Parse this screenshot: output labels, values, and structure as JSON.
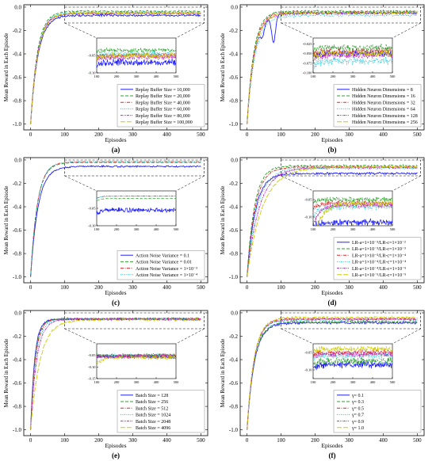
{
  "figure": {
    "ylabel": "Mean Reward in Each Episode",
    "xlabel": "Episodes"
  },
  "chart_data": [
    {
      "type": "line",
      "panel_label": "(a)",
      "xlabel": "Episodes",
      "ylabel": "Mean Reward in Each Episode",
      "xlim": [
        -20,
        520
      ],
      "ylim": [
        -1.05,
        0.02
      ],
      "xticks": [
        0,
        100,
        200,
        300,
        400,
        500
      ],
      "xtick_labels": [
        "0",
        "100",
        "200",
        "300",
        "400",
        "500"
      ],
      "yticks": [
        0.0,
        -0.2,
        -0.4,
        -0.6,
        -0.8,
        -1.0
      ],
      "ytick_labels": [
        "0.0",
        "-0.2",
        "-0.4",
        "-0.6",
        "-0.8",
        "-1.0"
      ],
      "legend_position": "lower-right",
      "series": [
        {
          "name": "Replay Buffer Size = 10,000",
          "color": "#1f1fff",
          "dash": "solid",
          "start": -1.0,
          "end": -0.07,
          "k": 22,
          "noise": 0.012
        },
        {
          "name": "Replay Buffer Size = 20,000",
          "color": "#2ca02c",
          "dash": "dash",
          "start": -1.0,
          "end": -0.035,
          "k": 20,
          "noise": 0.008
        },
        {
          "name": "Replay Buffer Size = 40,000",
          "color": "#d62728",
          "dash": "dashdot",
          "start": -1.0,
          "end": -0.05,
          "k": 21,
          "noise": 0.01
        },
        {
          "name": "Replay Buffer Size = 60,000",
          "color": "#17becf",
          "dash": "dot",
          "start": -1.0,
          "end": -0.045,
          "k": 21,
          "noise": 0.01
        },
        {
          "name": "Replay Buffer Size = 80,000",
          "color": "#c020c0",
          "dash": "dashdotdot",
          "start": -1.0,
          "end": -0.055,
          "k": 21,
          "noise": 0.01
        },
        {
          "name": "Replay Buffer Size = 100,000",
          "color": "#cccc00",
          "dash": "longdash",
          "start": -1.0,
          "end": -0.05,
          "k": 22,
          "noise": 0.01
        }
      ],
      "inset": {
        "xlim": [
          100,
          500
        ],
        "ylim": [
          -0.1,
          0.0
        ],
        "xticks": [
          100,
          200,
          300,
          400,
          500
        ],
        "xtick_labels": [
          "100",
          "200",
          "300",
          "400",
          "500"
        ],
        "yticks": [
          -0.05,
          -0.1
        ],
        "ytick_labels": [
          "-0.05",
          "-0.10"
        ]
      }
    },
    {
      "type": "line",
      "panel_label": "(b)",
      "xlabel": "Episodes",
      "ylabel": "Mean Reward in Each Episode",
      "xlim": [
        -20,
        520
      ],
      "ylim": [
        -1.05,
        0.02
      ],
      "xticks": [
        0,
        100,
        200,
        300,
        400,
        500
      ],
      "xtick_labels": [
        "0",
        "100",
        "200",
        "300",
        "400",
        "500"
      ],
      "yticks": [
        0.0,
        -0.2,
        -0.4,
        -0.6,
        -0.8,
        -1.0
      ],
      "ytick_labels": [
        "0.0",
        "-0.2",
        "-0.4",
        "-0.6",
        "-0.8",
        "-1.0"
      ],
      "legend_position": "lower-right",
      "series": [
        {
          "name": "Hidden Neuron Dimensions = 8",
          "color": "#1f1fff",
          "dash": "solid",
          "start": -1.0,
          "end": -0.05,
          "k": 22,
          "noise": 0.01,
          "dips": [
            [
              45,
              -0.15
            ],
            [
              78,
              -0.3
            ]
          ]
        },
        {
          "name": "Hidden Neuron Dimensions = 16",
          "color": "#2ca02c",
          "dash": "dash",
          "start": -1.0,
          "end": -0.035,
          "k": 20,
          "noise": 0.01
        },
        {
          "name": "Hidden Neuron Dimensions = 32",
          "color": "#d62728",
          "dash": "dashdot",
          "start": -1.0,
          "end": -0.045,
          "k": 21,
          "noise": 0.01
        },
        {
          "name": "Hidden Neuron Dimensions = 64",
          "color": "#17becf",
          "dash": "dot",
          "start": -1.0,
          "end": -0.07,
          "k": 24,
          "noise": 0.012
        },
        {
          "name": "Hidden Neuron Dimensions = 128",
          "color": "#c020c0",
          "dash": "dashdotdot",
          "start": -1.0,
          "end": -0.055,
          "k": 22,
          "noise": 0.01
        },
        {
          "name": "Hidden Neuron Dimensions = 256",
          "color": "#cccc00",
          "dash": "longdash",
          "start": -1.0,
          "end": -0.05,
          "k": 22,
          "noise": 0.01
        }
      ],
      "inset": {
        "xlim": [
          100,
          500
        ],
        "ylim": [
          -0.1,
          -0.01
        ],
        "xticks": [
          100,
          200,
          300,
          400,
          500
        ],
        "xtick_labels": [
          "100",
          "200",
          "300",
          "400",
          "500"
        ],
        "yticks": [
          -0.025,
          -0.05,
          -0.075,
          -0.1
        ],
        "ytick_labels": [
          "-0.025",
          "-0.050",
          "-0.075",
          "-0.100"
        ]
      }
    },
    {
      "type": "line",
      "panel_label": "(c)",
      "xlabel": "Episodes",
      "ylabel": "Mean Reward in Each Episode",
      "xlim": [
        -20,
        520
      ],
      "ylim": [
        -1.05,
        0.02
      ],
      "xticks": [
        0,
        100,
        200,
        300,
        400,
        500
      ],
      "xtick_labels": [
        "0",
        "100",
        "200",
        "300",
        "400",
        "500"
      ],
      "yticks": [
        0.0,
        -0.2,
        -0.4,
        -0.6,
        -0.8,
        -1.0
      ],
      "ytick_labels": [
        "0.0",
        "-0.2",
        "-0.4",
        "-0.6",
        "-0.8",
        "-1.0"
      ],
      "legend_position": "lower-right",
      "series": [
        {
          "name": "Action Noise Variance = 0.1",
          "color": "#1f1fff",
          "dash": "solid",
          "start": -1.0,
          "end": -0.055,
          "k": 22,
          "noise": 0.008
        },
        {
          "name": "Action Noise Variance = 0.01",
          "color": "#2ca02c",
          "dash": "dash",
          "start": -1.0,
          "end": -0.022,
          "k": 20,
          "noise": 0.001
        },
        {
          "name": "Action Noise Variance = 1×10⁻³",
          "color": "#d62728",
          "dash": "dashdot",
          "start": -1.0,
          "end": -0.015,
          "k": 20,
          "noise": 0.001
        },
        {
          "name": "Action Noise Variance = 1×10⁻⁴",
          "color": "#17becf",
          "dash": "dot",
          "start": -1.0,
          "end": -0.015,
          "k": 20,
          "noise": 0.001
        }
      ],
      "inset": {
        "xlim": [
          100,
          500
        ],
        "ylim": [
          -0.1,
          0.0
        ],
        "xticks": [
          100,
          200,
          300,
          400,
          500
        ],
        "xtick_labels": [
          "100",
          "200",
          "300",
          "400",
          "500"
        ],
        "yticks": [
          -0.05,
          -0.1
        ],
        "ytick_labels": [
          "-0.05",
          "-0.10"
        ]
      }
    },
    {
      "type": "line",
      "panel_label": "(d)",
      "xlabel": "Episodes",
      "ylabel": "Mean Reward in Each Episode",
      "xlim": [
        -20,
        520
      ],
      "ylim": [
        -1.05,
        0.02
      ],
      "xticks": [
        0,
        100,
        200,
        300,
        400,
        500
      ],
      "xtick_labels": [
        "0",
        "100",
        "200",
        "300",
        "400",
        "500"
      ],
      "yticks": [
        0.0,
        -0.2,
        -0.4,
        -0.6,
        -0.8,
        -1.0
      ],
      "ytick_labels": [
        "0.0",
        "-0.2",
        "-0.4",
        "-0.6",
        "-0.8",
        "-1.0"
      ],
      "legend_position": "lower-right",
      "series": [
        {
          "name": "LR-a=1×10⁻³/LR-c=1×10⁻²",
          "color": "#1f1fff",
          "dash": "solid",
          "start": -1.0,
          "end": -0.115,
          "k": 24,
          "noise": 0.012
        },
        {
          "name": "LR-a=1×10⁻³/LR-c=1×10⁻³",
          "color": "#2ca02c",
          "dash": "dash",
          "start": -1.0,
          "end": -0.05,
          "k": 22,
          "noise": 0.01
        },
        {
          "name": "LR-a=1×10⁻³/LR-c=1×10⁻⁴",
          "color": "#d62728",
          "dash": "dashdot",
          "start": -1.0,
          "end": -0.06,
          "k": 24,
          "noise": 0.01
        },
        {
          "name": "LR-a=1×10⁻⁴/LR-c=1×10⁻⁴",
          "color": "#17becf",
          "dash": "dot",
          "start": -1.0,
          "end": -0.07,
          "k": 30,
          "noise": 0.012
        },
        {
          "name": "LR-a=1×10⁻⁴/LR-c=1×10⁻⁵",
          "color": "#c020c0",
          "dash": "dashdotdot",
          "start": -1.0,
          "end": -0.065,
          "k": 36,
          "noise": 0.01
        },
        {
          "name": "LR-a=1×10⁻⁵/LR-c=1×10⁻⁵",
          "color": "#cccc00",
          "dash": "longdash",
          "start": -1.0,
          "end": -0.06,
          "k": 45,
          "noise": 0.01
        }
      ],
      "inset": {
        "xlim": [
          100,
          500
        ],
        "ylim": [
          -0.125,
          -0.025
        ],
        "xticks": [
          100,
          200,
          300,
          400,
          500
        ],
        "xtick_labels": [
          "100",
          "200",
          "300",
          "400",
          "500"
        ],
        "yticks": [
          -0.05,
          -0.1
        ],
        "ytick_labels": [
          "-0.05",
          "-0.10"
        ]
      }
    },
    {
      "type": "line",
      "panel_label": "(e)",
      "xlabel": "Episodes",
      "ylabel": "Mean Reward in Each Episode",
      "xlim": [
        -20,
        520
      ],
      "ylim": [
        -1.05,
        0.02
      ],
      "xticks": [
        0,
        100,
        200,
        300,
        400,
        500
      ],
      "xtick_labels": [
        "0",
        "100",
        "200",
        "300",
        "400",
        "500"
      ],
      "yticks": [
        0.0,
        -0.2,
        -0.4,
        -0.6,
        -0.8,
        -1.0
      ],
      "ytick_labels": [
        "0.0",
        "-0.2",
        "-0.4",
        "-0.6",
        "-0.8",
        "-1.0"
      ],
      "legend_position": "lower-right",
      "series": [
        {
          "name": "Batch Size = 128",
          "color": "#1f1fff",
          "dash": "solid",
          "start": -1.0,
          "end": -0.055,
          "k": 12,
          "noise": 0.01
        },
        {
          "name": "Batch Size = 256",
          "color": "#2ca02c",
          "dash": "dash",
          "start": -1.0,
          "end": -0.05,
          "k": 13,
          "noise": 0.01
        },
        {
          "name": "Batch Size = 512",
          "color": "#d62728",
          "dash": "dashdot",
          "start": -1.0,
          "end": -0.05,
          "k": 14,
          "noise": 0.01
        },
        {
          "name": "Batch Size = 1024",
          "color": "#17becf",
          "dash": "dot",
          "start": -1.0,
          "end": -0.05,
          "k": 16,
          "noise": 0.01
        },
        {
          "name": "Batch Size = 2048",
          "color": "#c020c0",
          "dash": "dashdotdot",
          "start": -1.0,
          "end": -0.055,
          "k": 18,
          "noise": 0.01
        },
        {
          "name": "Batch Size = 4096",
          "color": "#cccc00",
          "dash": "longdash",
          "start": -1.0,
          "end": -0.06,
          "k": 28,
          "noise": 0.01
        }
      ],
      "inset": {
        "xlim": [
          100,
          500
        ],
        "ylim": [
          -0.15,
          0.0
        ],
        "xticks": [
          100,
          200,
          300,
          400,
          500
        ],
        "xtick_labels": [
          "100",
          "200",
          "300",
          "400",
          "500"
        ],
        "yticks": [
          -0.05,
          -0.1,
          -0.15
        ],
        "ytick_labels": [
          "-0.05",
          "-0.10",
          "-0.15"
        ]
      }
    },
    {
      "type": "line",
      "panel_label": "(f)",
      "xlabel": "Episodes",
      "ylabel": "Mean Reward in Each Episode",
      "xlim": [
        -20,
        520
      ],
      "ylim": [
        -1.05,
        0.02
      ],
      "xticks": [
        0,
        100,
        200,
        300,
        400,
        500
      ],
      "xtick_labels": [
        "0",
        "100",
        "200",
        "300",
        "400",
        "500"
      ],
      "yticks": [
        0.0,
        -0.2,
        -0.4,
        -0.6,
        -0.8,
        -1.0
      ],
      "ytick_labels": [
        "0.0",
        "-0.2",
        "-0.4",
        "-0.6",
        "-0.8",
        "-1.0"
      ],
      "legend_position": "lower-right",
      "series": [
        {
          "name": "γ= 0.1",
          "color": "#1f1fff",
          "dash": "solid",
          "start": -1.0,
          "end": -0.085,
          "k": 22,
          "noise": 0.012
        },
        {
          "name": "γ= 0.3",
          "color": "#2ca02c",
          "dash": "dash",
          "start": -1.0,
          "end": -0.075,
          "k": 22,
          "noise": 0.012
        },
        {
          "name": "γ= 0.5",
          "color": "#d62728",
          "dash": "dashdot",
          "start": -1.0,
          "end": -0.05,
          "k": 21,
          "noise": 0.01
        },
        {
          "name": "γ= 0.7",
          "color": "#17becf",
          "dash": "dot",
          "start": -1.0,
          "end": -0.06,
          "k": 21,
          "noise": 0.01
        },
        {
          "name": "γ= 0.9",
          "color": "#c020c0",
          "dash": "dashdotdot",
          "start": -1.0,
          "end": -0.055,
          "k": 21,
          "noise": 0.01
        },
        {
          "name": "γ= 1.0",
          "color": "#cccc00",
          "dash": "longdash",
          "start": -1.0,
          "end": -0.04,
          "k": 21,
          "noise": 0.01
        }
      ],
      "inset": {
        "xlim": [
          100,
          500
        ],
        "ylim": [
          -0.125,
          -0.025
        ],
        "xticks": [
          100,
          200,
          300,
          400,
          500
        ],
        "xtick_labels": [
          "100",
          "200",
          "300",
          "400",
          "500"
        ],
        "yticks": [
          -0.05,
          -0.1
        ],
        "ytick_labels": [
          "-0.05",
          "-0.10"
        ]
      }
    }
  ]
}
